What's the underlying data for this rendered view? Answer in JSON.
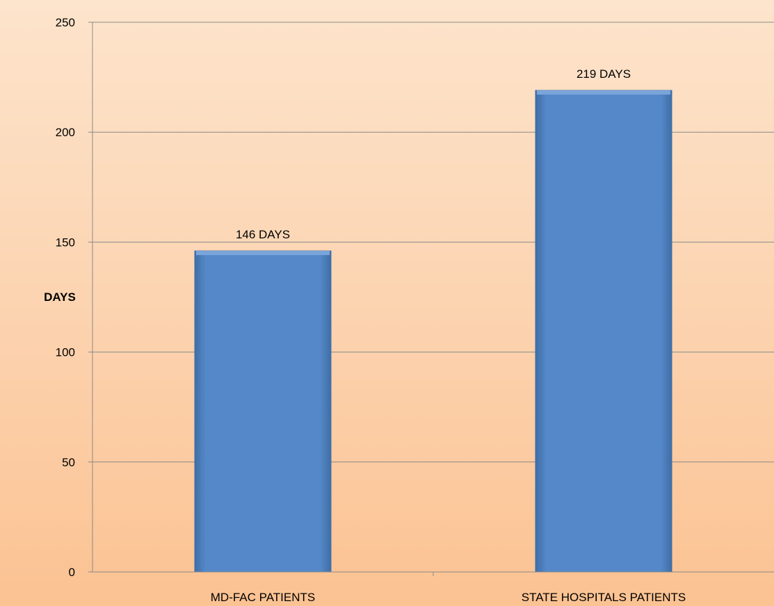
{
  "chart_data": {
    "type": "bar",
    "categories": [
      "MD-FAC PATIENTS",
      "STATE HOSPITALS PATIENTS"
    ],
    "values": [
      146,
      219
    ],
    "data_labels": [
      "146 DAYS",
      "219 DAYS"
    ],
    "ylabel": "DAYS",
    "xlabel": "",
    "ylim": [
      0,
      250
    ],
    "yticks": [
      0,
      50,
      100,
      150,
      200,
      250
    ],
    "grid": true,
    "legend": "none",
    "colors": {
      "bar_fill": "#5588c8",
      "bar_highlight": "#7aa5da",
      "bar_edge": "#3f6ea6",
      "gridline": "#8a8a8a"
    }
  }
}
